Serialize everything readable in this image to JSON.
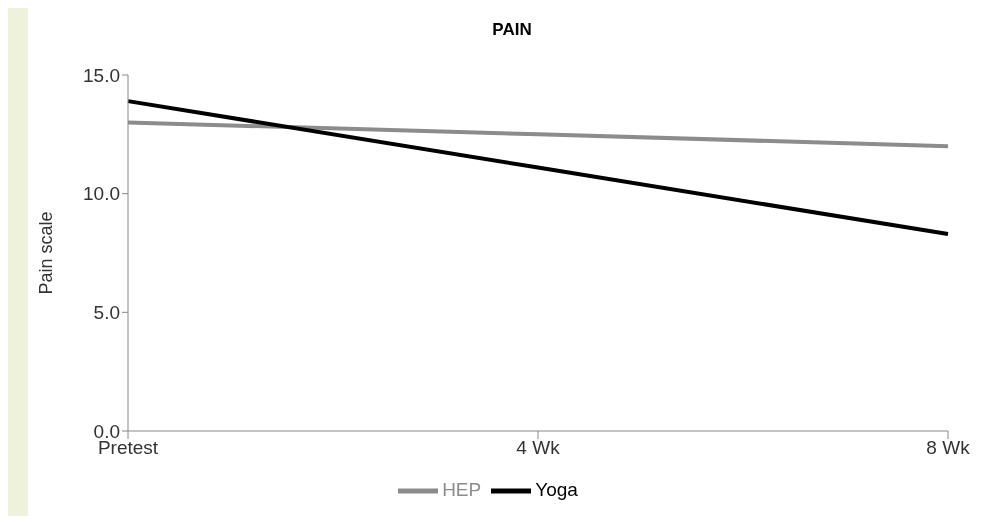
{
  "chart_data": {
    "type": "line",
    "title": "PAIN",
    "ylabel": "Pain scale",
    "categories": [
      "Pretest",
      "4 Wk",
      "8 Wk"
    ],
    "series": [
      {
        "name": "HEP",
        "color": "#8c8c8c",
        "values": [
          13.0,
          12.5,
          12.0
        ]
      },
      {
        "name": "Yoga",
        "color": "#000000",
        "values": [
          13.9,
          11.1,
          8.3
        ]
      }
    ],
    "ylim": [
      0,
      15
    ],
    "yticks": [
      {
        "value": 0,
        "label": "0.0"
      },
      {
        "value": 5,
        "label": "5.0"
      },
      {
        "value": 10,
        "label": "10.0"
      },
      {
        "value": 15,
        "label": "15.0"
      }
    ],
    "grid": false,
    "legend": "bottom",
    "marker": "none",
    "line_style": "solid"
  }
}
